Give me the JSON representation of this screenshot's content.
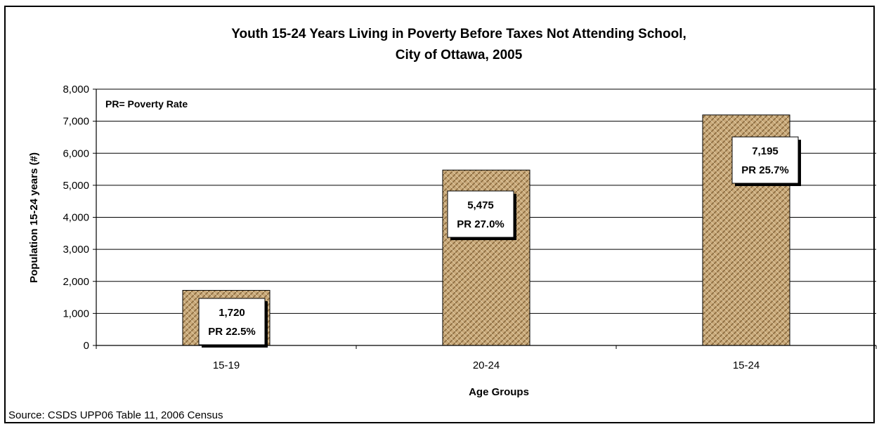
{
  "chart_data": {
    "type": "bar",
    "title_lines": [
      "Youth 15-24 Years Living in Poverty Before Taxes Not Attending School,",
      "City of Ottawa, 2005"
    ],
    "xlabel": "Age Groups",
    "ylabel": "Population 15-24 years (#)",
    "categories": [
      "15-19",
      "20-24",
      "15-24"
    ],
    "values": [
      1720,
      5475,
      7195
    ],
    "value_labels": [
      "1,720",
      "5,475",
      "7,195"
    ],
    "rate_labels": [
      "PR 22.5%",
      "PR 27.0%",
      "PR 25.7%"
    ],
    "ylim": [
      0,
      8000
    ],
    "yticks": [
      0,
      1000,
      2000,
      3000,
      4000,
      5000,
      6000,
      7000,
      8000
    ],
    "ytick_labels": [
      "0",
      "1,000",
      "2,000",
      "3,000",
      "4,000",
      "5,000",
      "6,000",
      "7,000",
      "8,000"
    ],
    "grid": true,
    "note": "PR= Poverty Rate",
    "bar_fill": "#c9a97a",
    "bar_pattern": "#8a6a3e"
  },
  "source": "Source: CSDS UPP06 Table 11, 2006 Census"
}
